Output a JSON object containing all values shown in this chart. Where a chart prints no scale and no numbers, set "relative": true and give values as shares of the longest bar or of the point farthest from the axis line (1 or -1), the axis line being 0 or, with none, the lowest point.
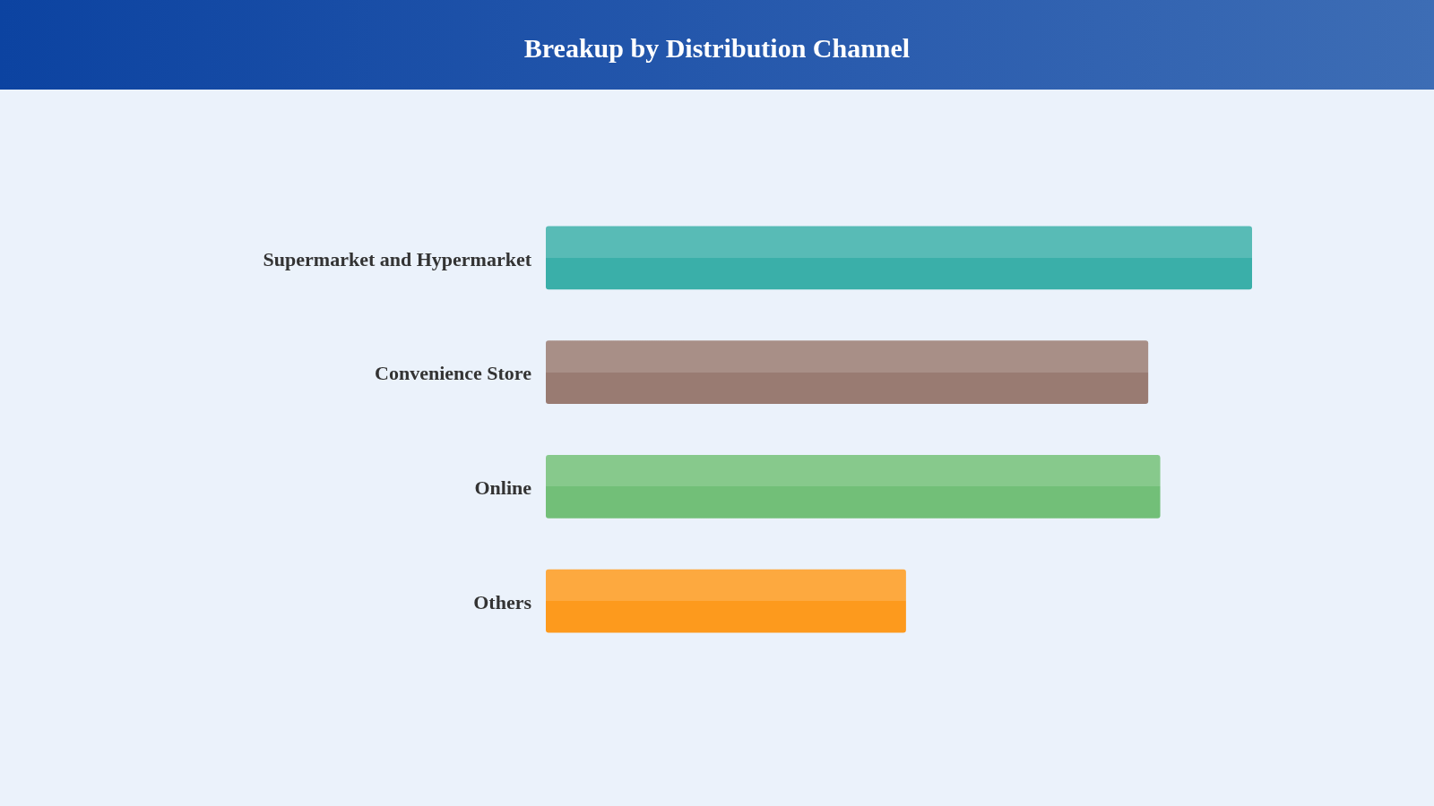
{
  "chart_data": {
    "type": "bar",
    "title": "Breakup by Distribution Channel",
    "orientation": "horizontal",
    "relative": true,
    "categories": [
      "Supermarket and Hypermarket",
      "Convenience Store",
      "Online",
      "Others"
    ],
    "values": [
      1,
      0.853,
      0.87,
      0.51
    ],
    "colors": [
      "#3aafa9",
      "#997b72",
      "#72bf78",
      "#fd9a1d"
    ],
    "legend": false
  }
}
